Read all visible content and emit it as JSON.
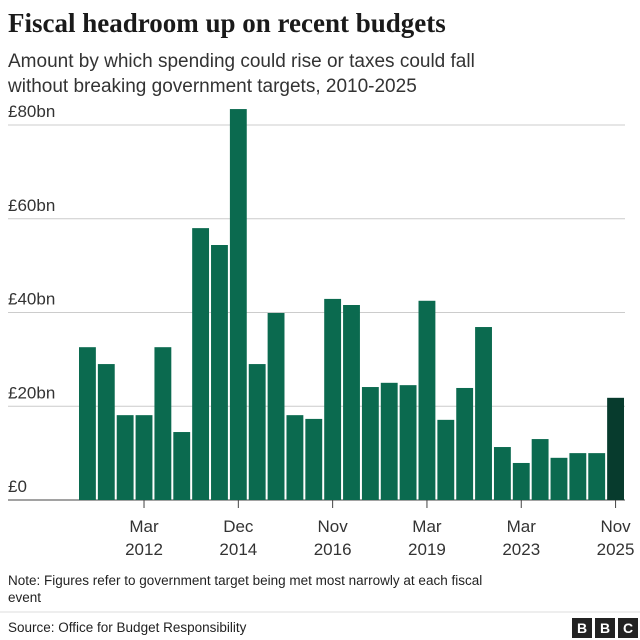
{
  "chart_data": {
    "type": "bar",
    "title": "Fiscal headroom up on recent budgets",
    "subtitle": [
      "Amount by which spending could rise or taxes could fall",
      "without breaking government targets, 2010-2025"
    ],
    "categories": [
      null,
      null,
      null,
      "Mar 2012",
      null,
      null,
      null,
      null,
      "Dec 2014",
      null,
      null,
      null,
      null,
      "Nov 2016",
      null,
      null,
      null,
      null,
      "Mar 2019",
      null,
      null,
      null,
      null,
      "Mar 2023",
      null,
      null,
      null,
      null,
      "Nov 2025"
    ],
    "values": [
      32.6,
      29.0,
      18.1,
      18.1,
      32.6,
      14.5,
      58.0,
      54.4,
      83.4,
      29.0,
      39.9,
      18.1,
      17.3,
      42.9,
      41.6,
      24.1,
      25.0,
      24.5,
      42.5,
      17.1,
      23.9,
      36.9,
      11.3,
      7.9,
      13.0,
      9.0,
      10.0,
      10.0,
      21.8
    ],
    "colors": [
      "#0b6a4f",
      "#0b6a4f",
      "#0b6a4f",
      "#0b6a4f",
      "#0b6a4f",
      "#0b6a4f",
      "#0b6a4f",
      "#0b6a4f",
      "#0b6a4f",
      "#0b6a4f",
      "#0b6a4f",
      "#0b6a4f",
      "#0b6a4f",
      "#0b6a4f",
      "#0b6a4f",
      "#0b6a4f",
      "#0b6a4f",
      "#0b6a4f",
      "#0b6a4f",
      "#0b6a4f",
      "#0b6a4f",
      "#0b6a4f",
      "#0b6a4f",
      "#0b6a4f",
      "#0b6a4f",
      "#0b6a4f",
      "#0b6a4f",
      "#0b6a4f",
      "#073b2d"
    ],
    "ylim": [
      0,
      80
    ],
    "yticks": [
      {
        "value": 0,
        "label": "£0"
      },
      {
        "value": 20,
        "label": "£20bn"
      },
      {
        "value": 40,
        "label": "£40bn"
      },
      {
        "value": 60,
        "label": "£60bn"
      },
      {
        "value": 80,
        "label": "£80bn"
      }
    ],
    "grid": true,
    "note": [
      "Note: Figures refer to government target being met most narrowly at each fiscal",
      "event"
    ],
    "source": "Source: Office for Budget Responsibility",
    "logo": [
      "B",
      "B",
      "C"
    ]
  }
}
